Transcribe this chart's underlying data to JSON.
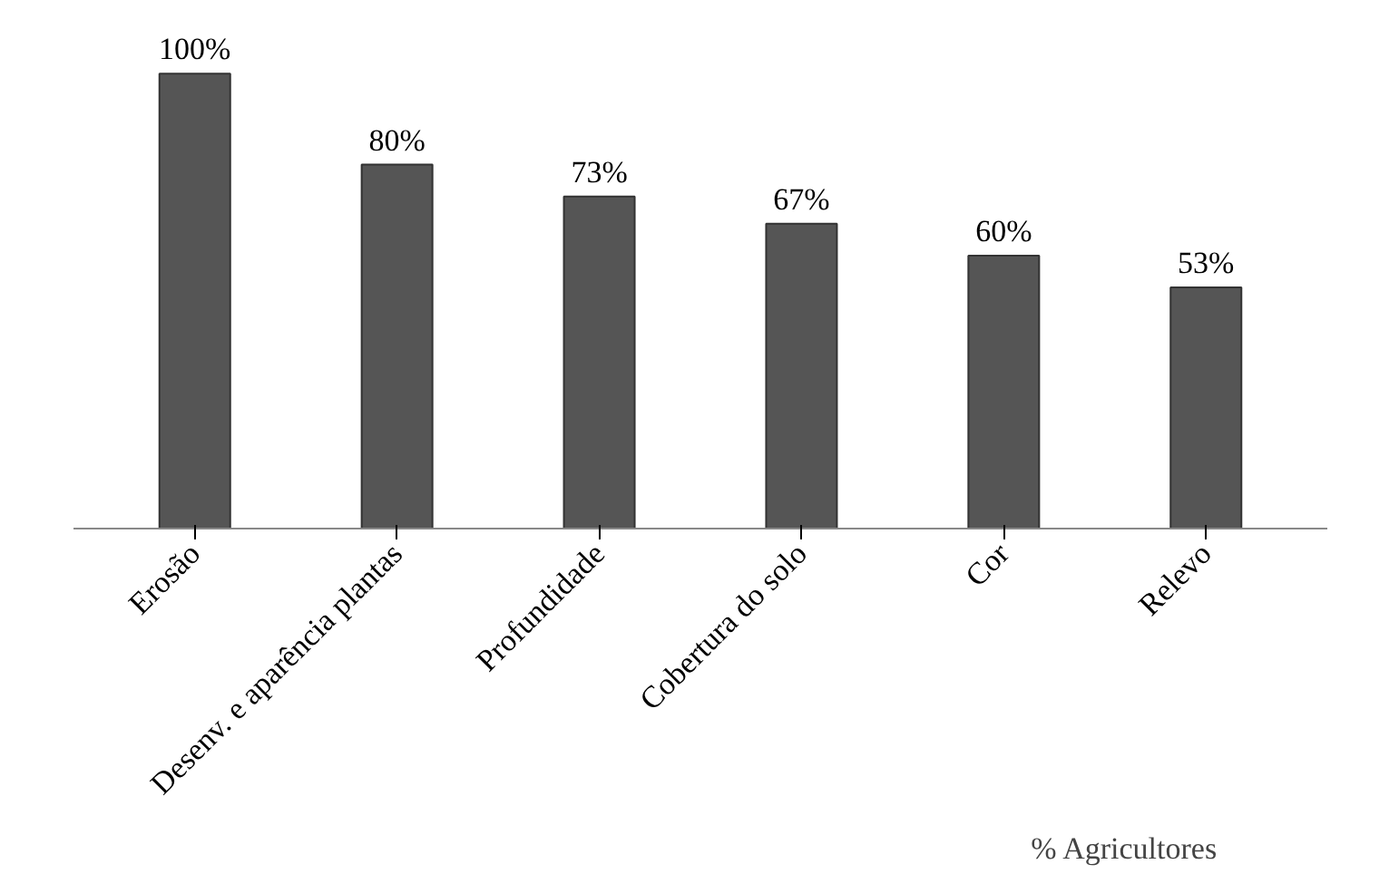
{
  "chart_data": {
    "type": "bar",
    "categories": [
      "Erosão",
      "Desenv. e aparência plantas",
      "Profundidade",
      "Cobertura do solo",
      "Cor",
      "Relevo"
    ],
    "values": [
      100,
      80,
      73,
      67,
      60,
      53
    ],
    "value_labels": [
      "100%",
      "80%",
      "73%",
      "67%",
      "60%",
      "53%"
    ],
    "color": "#555555",
    "xlabel": "% Agricultores",
    "grid": false
  }
}
